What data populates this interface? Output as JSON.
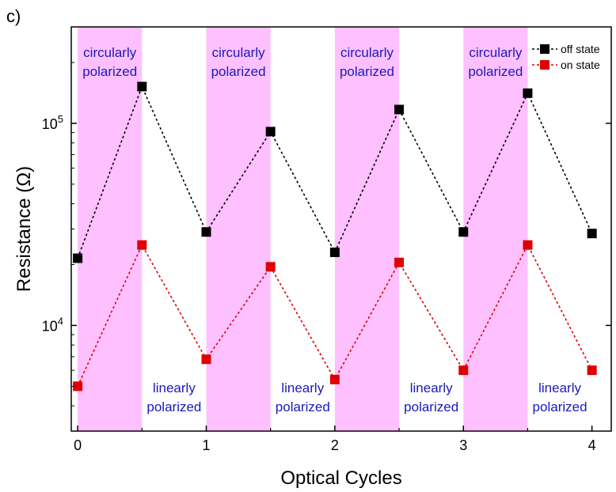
{
  "panel_label": "c)",
  "chart_data": {
    "type": "line",
    "xlabel": "Optical Cycles",
    "ylabel": "Resistance (Ω)",
    "yscale": "log",
    "xlim": [
      -0.05,
      4.15
    ],
    "ylim": [
      3000,
      300000
    ],
    "x_ticks": [
      0,
      1,
      2,
      3,
      4
    ],
    "x_tick_labels": [
      "0",
      "1",
      "2",
      "3",
      "4"
    ],
    "y_ticks": [
      {
        "value": 10000,
        "base": "10",
        "exp": "4"
      },
      {
        "value": 100000,
        "base": "10",
        "exp": "5"
      }
    ],
    "grid": false,
    "legend_position": "top-right",
    "x": [
      0,
      0.5,
      1,
      1.5,
      2,
      2.5,
      3,
      3.5,
      4
    ],
    "series": [
      {
        "name": "off state",
        "color": "#000000",
        "values": [
          21500,
          152000,
          29000,
          91000,
          23000,
          117000,
          29000,
          141000,
          28500
        ]
      },
      {
        "name": "on state",
        "color": "#e00000",
        "values": [
          5000,
          25000,
          6800,
          19500,
          5400,
          20500,
          6000,
          25000,
          6000
        ]
      }
    ],
    "shaded_regions": [
      [
        0,
        0.5
      ],
      [
        1,
        1.5
      ],
      [
        2,
        2.5
      ],
      [
        3,
        3.5
      ]
    ],
    "shade_color": "#ffc0ff",
    "annotations": [
      {
        "line1": "circularly",
        "line2": "polarized",
        "x": 0.25,
        "position": "top"
      },
      {
        "line1": "circularly",
        "line2": "polarized",
        "x": 1.25,
        "position": "top"
      },
      {
        "line1": "circularly",
        "line2": "polarized",
        "x": 2.25,
        "position": "top"
      },
      {
        "line1": "circularly",
        "line2": "polarized",
        "x": 3.25,
        "position": "top"
      },
      {
        "line1": "linearly",
        "line2": "polarized",
        "x": 0.75,
        "position": "bottom"
      },
      {
        "line1": "linearly",
        "line2": "polarized",
        "x": 1.75,
        "position": "bottom"
      },
      {
        "line1": "linearly",
        "line2": "polarized",
        "x": 2.75,
        "position": "bottom"
      },
      {
        "line1": "linearly",
        "line2": "polarized",
        "x": 3.75,
        "position": "bottom"
      }
    ],
    "annotation_color": "#1a1ab8"
  }
}
